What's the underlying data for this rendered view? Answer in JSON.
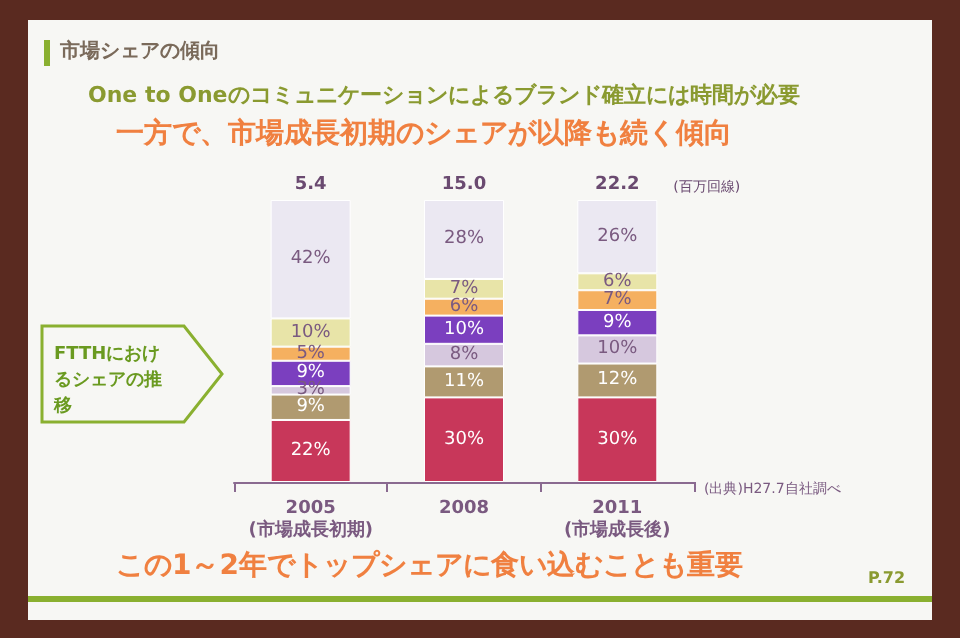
{
  "chart_data": {
    "type": "bar",
    "stacked": true,
    "title": "市場シェアの傾向",
    "subtitle": "One to Oneのコミュニケーションによるブランド確立には時間が必要",
    "categories": [
      "2005\n(市場成長初期)",
      "2008",
      "2011\n(市場成長後)"
    ],
    "series": [
      {
        "color": "#c8375a",
        "values": [
          22,
          30,
          30
        ],
        "value_labels": [
          "22%",
          "30%",
          "30%"
        ]
      },
      {
        "color": "#b09a70",
        "values": [
          9,
          11,
          12
        ],
        "value_labels": [
          "9%",
          "11%",
          "12%"
        ]
      },
      {
        "color": "#d6c8de",
        "values": [
          3,
          8,
          10
        ],
        "value_labels": [
          "3%",
          "8%",
          "10%"
        ]
      },
      {
        "color": "#7b3fbf",
        "values": [
          9,
          10,
          9
        ],
        "value_labels": [
          "9%",
          "10%",
          "9%"
        ]
      },
      {
        "color": "#f5b060",
        "values": [
          5,
          6,
          7
        ],
        "value_labels": [
          "5%",
          "6%",
          "7%"
        ]
      },
      {
        "color": "#e8e4a8",
        "values": [
          10,
          7,
          6
        ],
        "value_labels": [
          "10%",
          "7%",
          "6%"
        ]
      },
      {
        "color": "#ebe8f2",
        "values": [
          42,
          28,
          26
        ],
        "value_labels": [
          "42%",
          "28%",
          "26%"
        ]
      }
    ],
    "annotations": [
      "一方で、市場成長初期のシェアが以降も続く傾向",
      "(百万回線)",
      "FTTHにおけるシェアの推移",
      "(出典)H27.7自社調べ",
      "この1～2年でトップシェアに食い込むことも重要",
      "P.72",
      {
        "text": "5.4",
        "x": "2005\n(市場成長初期)",
        "y": 100
      },
      {
        "text": "15.0",
        "x": "2008",
        "y": 100
      },
      {
        "text": "22.2",
        "x": "2011\n(市場成長後)",
        "y": 100
      }
    ]
  }
}
